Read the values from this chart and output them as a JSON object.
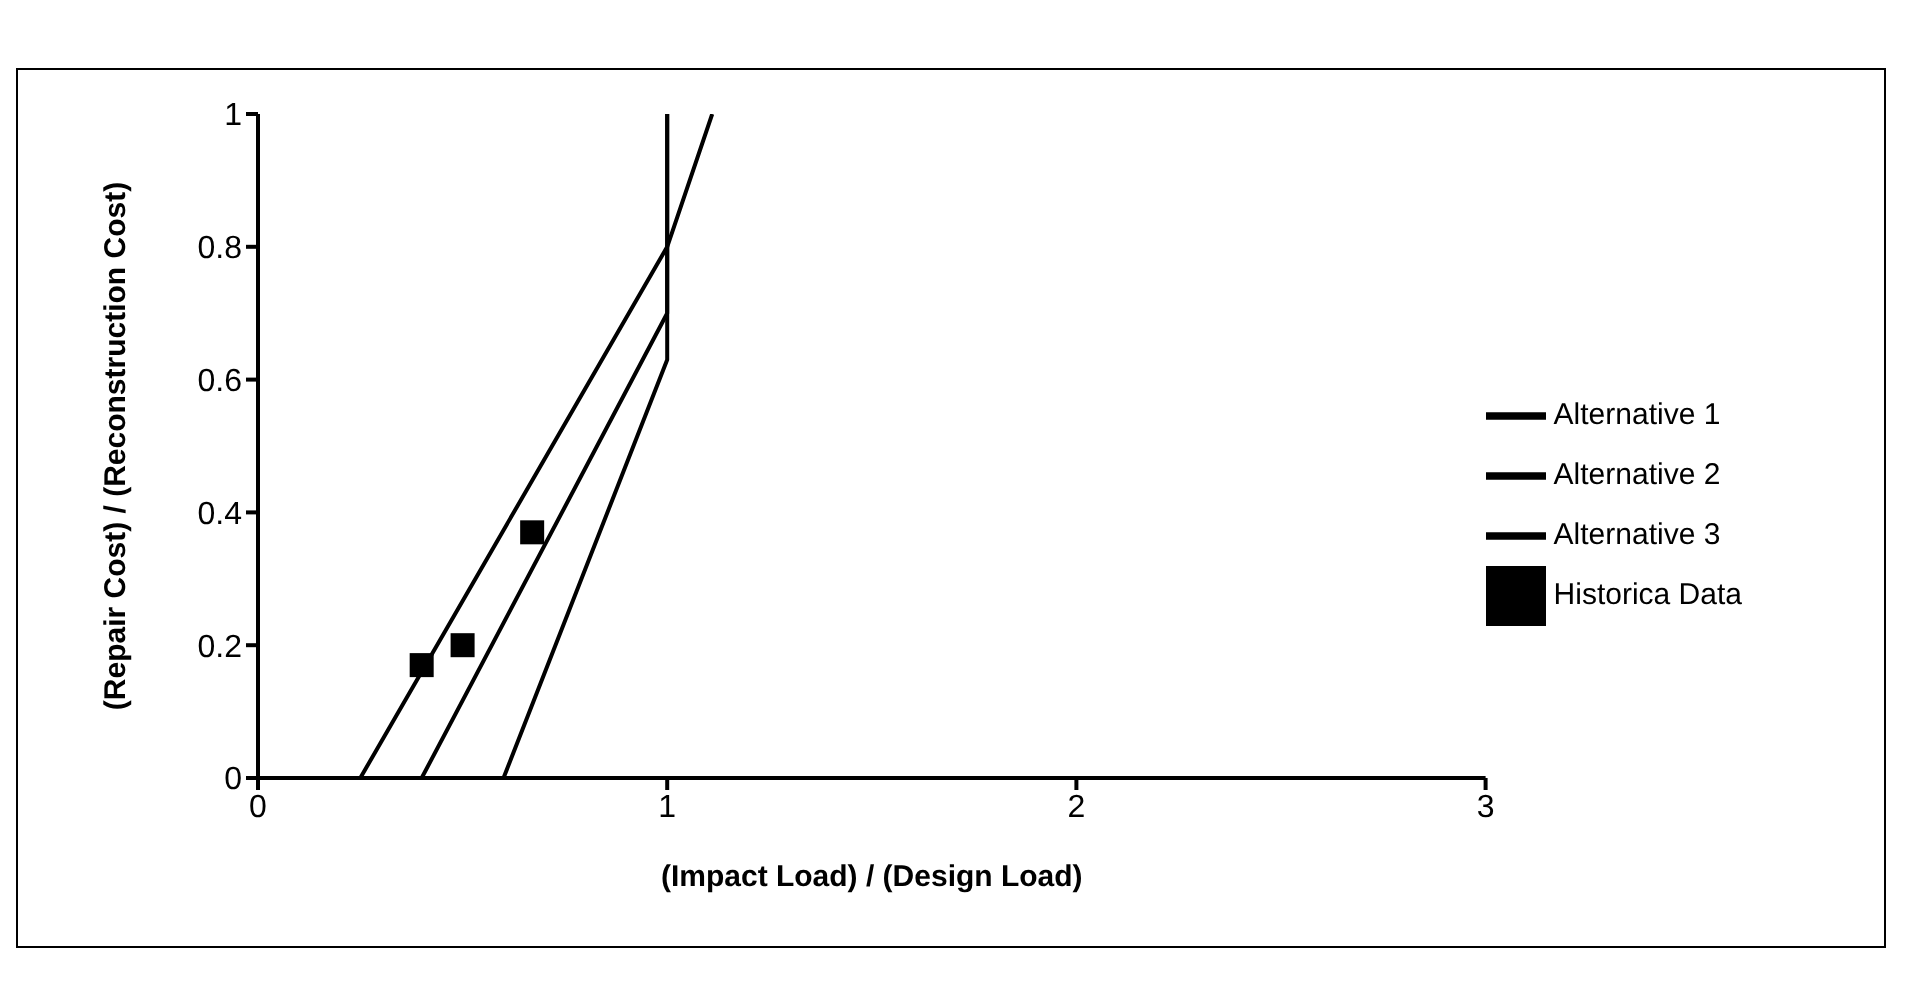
{
  "chart_data": {
    "type": "line",
    "xlabel": "(Impact Load) / (Design Load)",
    "ylabel": "(Repair Cost) / (Reconstruction Cost)",
    "xlim": [
      0,
      3
    ],
    "xticks": [
      0,
      1,
      2,
      3
    ],
    "ylim": [
      0,
      1
    ],
    "yticks": [
      0,
      0.2,
      0.4,
      0.6,
      0.8,
      1
    ],
    "grid": false,
    "legend": "right",
    "marker": "none",
    "line_style": "solid",
    "series": [
      {
        "name": "Alternative 1",
        "color": "#000000",
        "x": [
          0.25,
          1,
          1.11
        ],
        "values": [
          0,
          0.8,
          1
        ]
      },
      {
        "name": "Alternative 2",
        "color": "#000000",
        "x": [
          0.4,
          1,
          1
        ],
        "values": [
          0,
          0.7,
          1
        ]
      },
      {
        "name": "Alternative 3",
        "color": "#000000",
        "x": [
          0.6,
          1,
          1
        ],
        "values": [
          0,
          0.63,
          1
        ]
      },
      {
        "name": "Historica Data",
        "type": "scatter",
        "marker": "square",
        "color": "#000000",
        "x": [
          0.4,
          0.5,
          0.67
        ],
        "values": [
          0.17,
          0.2,
          0.37
        ]
      }
    ]
  }
}
